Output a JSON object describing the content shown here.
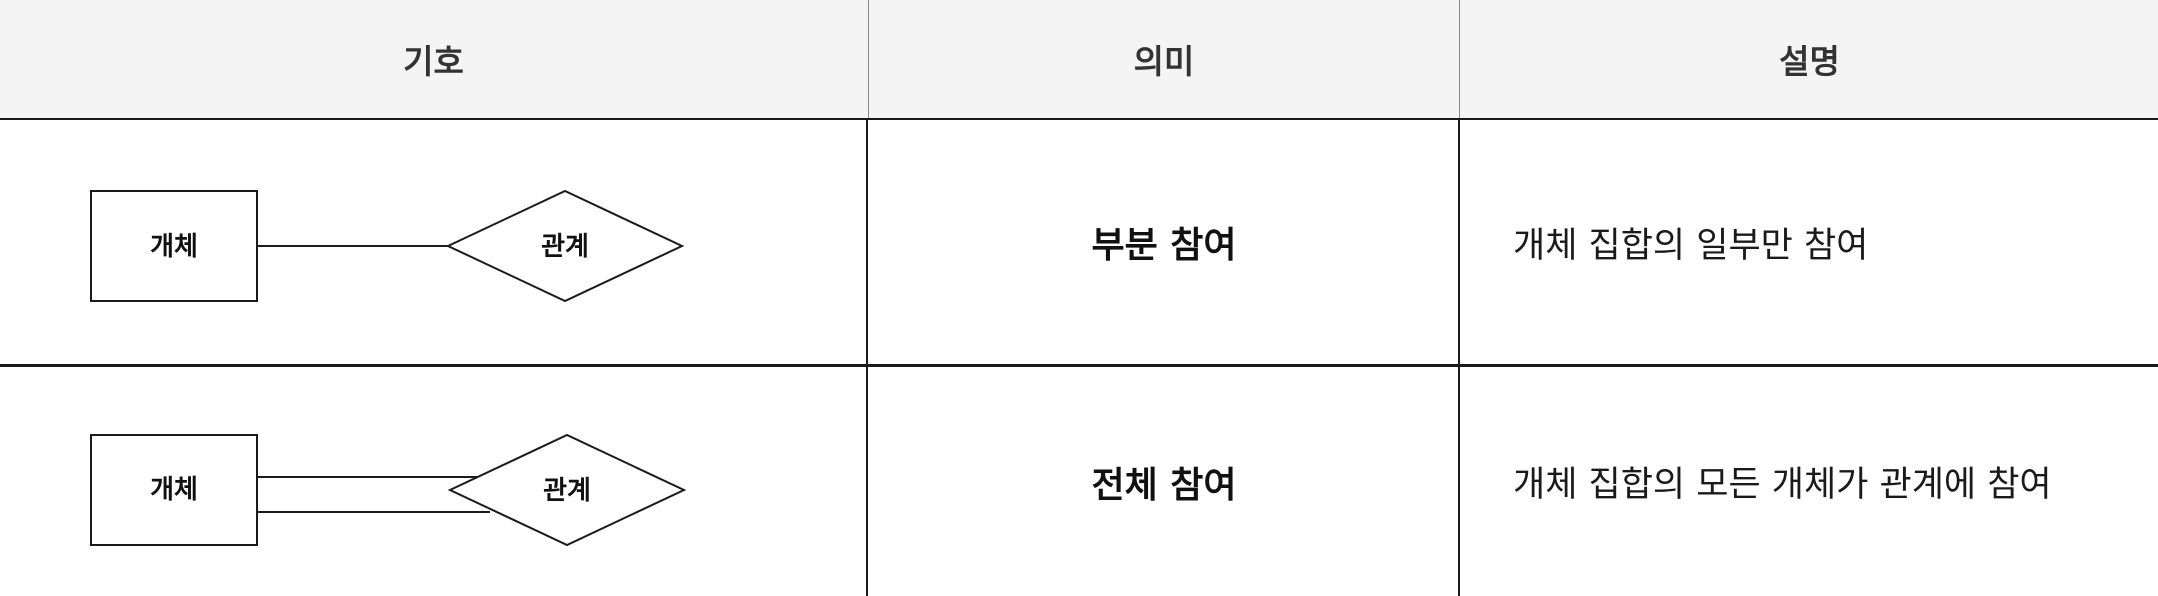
{
  "header": {
    "col_symbol": "기호",
    "col_meaning": "의미",
    "col_description": "설명"
  },
  "rows": [
    {
      "entity_label": "개체",
      "relationship_label": "관계",
      "connection": "single-line",
      "meaning": "부분 참여",
      "description": "개체 집합의 일부만 참여"
    },
    {
      "entity_label": "개체",
      "relationship_label": "관계",
      "connection": "double-line",
      "meaning": "전체 참여",
      "description": "개체 집합의 모든 개체가 관계에 참여"
    }
  ],
  "colors": {
    "header_background": "#f4f4f4",
    "border": "#1a1a1a",
    "text": "#111111"
  }
}
